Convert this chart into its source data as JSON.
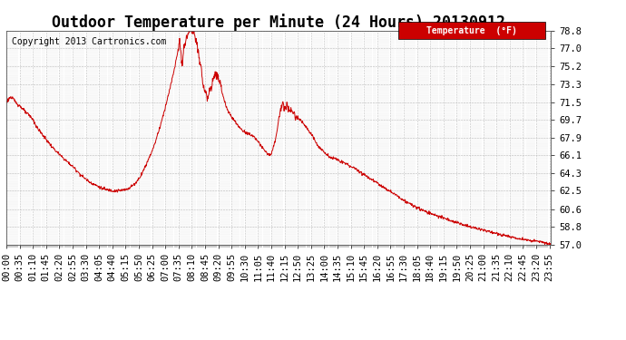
{
  "title": "Outdoor Temperature per Minute (24 Hours) 20130912",
  "copyright_text": "Copyright 2013 Cartronics.com",
  "legend_label": "Temperature  (°F)",
  "legend_bg": "#cc0000",
  "legend_text_color": "#ffffff",
  "line_color": "#cc0000",
  "bg_color": "#ffffff",
  "grid_color": "#aaaaaa",
  "yticks": [
    57.0,
    58.8,
    60.6,
    62.5,
    64.3,
    66.1,
    67.9,
    69.7,
    71.5,
    73.3,
    75.2,
    77.0,
    78.8
  ],
  "ymin": 57.0,
  "ymax": 78.8,
  "title_fontsize": 12,
  "copyright_fontsize": 7,
  "tick_fontsize": 7.5,
  "minutes_total": 1440,
  "curve_keypoints": [
    [
      0,
      71.5
    ],
    [
      10,
      72.0
    ],
    [
      20,
      71.8
    ],
    [
      30,
      71.3
    ],
    [
      40,
      71.0
    ],
    [
      50,
      70.5
    ],
    [
      60,
      70.2
    ],
    [
      70,
      69.8
    ],
    [
      80,
      69.0
    ],
    [
      100,
      68.0
    ],
    [
      120,
      67.0
    ],
    [
      140,
      66.2
    ],
    [
      160,
      65.5
    ],
    [
      180,
      64.8
    ],
    [
      200,
      64.0
    ],
    [
      220,
      63.4
    ],
    [
      240,
      63.0
    ],
    [
      255,
      62.7
    ],
    [
      265,
      62.6
    ],
    [
      275,
      62.55
    ],
    [
      285,
      62.5
    ],
    [
      295,
      62.5
    ],
    [
      305,
      62.55
    ],
    [
      315,
      62.6
    ],
    [
      325,
      62.8
    ],
    [
      340,
      63.2
    ],
    [
      355,
      64.0
    ],
    [
      370,
      65.2
    ],
    [
      390,
      67.0
    ],
    [
      410,
      69.5
    ],
    [
      430,
      72.5
    ],
    [
      445,
      75.0
    ],
    [
      452,
      76.5
    ],
    [
      458,
      77.8
    ],
    [
      462,
      76.2
    ],
    [
      465,
      75.0
    ],
    [
      468,
      76.5
    ],
    [
      472,
      77.5
    ],
    [
      476,
      78.0
    ],
    [
      480,
      78.5
    ],
    [
      484,
      78.7
    ],
    [
      488,
      78.8
    ],
    [
      493,
      78.7
    ],
    [
      498,
      78.3
    ],
    [
      503,
      77.5
    ],
    [
      508,
      76.5
    ],
    [
      513,
      75.2
    ],
    [
      518,
      74.0
    ],
    [
      523,
      73.0
    ],
    [
      528,
      72.5
    ],
    [
      533,
      71.8
    ],
    [
      538,
      72.8
    ],
    [
      543,
      73.3
    ],
    [
      548,
      74.0
    ],
    [
      553,
      74.5
    ],
    [
      558,
      74.2
    ],
    [
      562,
      73.8
    ],
    [
      566,
      73.2
    ],
    [
      570,
      72.5
    ],
    [
      575,
      71.8
    ],
    [
      580,
      71.2
    ],
    [
      585,
      70.7
    ],
    [
      590,
      70.3
    ],
    [
      595,
      70.0
    ],
    [
      600,
      69.8
    ],
    [
      605,
      69.5
    ],
    [
      610,
      69.2
    ],
    [
      615,
      69.0
    ],
    [
      620,
      68.8
    ],
    [
      625,
      68.6
    ],
    [
      630,
      68.5
    ],
    [
      635,
      68.4
    ],
    [
      640,
      68.3
    ],
    [
      645,
      68.2
    ],
    [
      650,
      68.1
    ],
    [
      655,
      68.0
    ],
    [
      660,
      67.8
    ],
    [
      665,
      67.5
    ],
    [
      670,
      67.2
    ],
    [
      675,
      67.0
    ],
    [
      680,
      66.7
    ],
    [
      685,
      66.5
    ],
    [
      690,
      66.3
    ],
    [
      695,
      66.2
    ],
    [
      698,
      66.1
    ],
    [
      700,
      66.2
    ],
    [
      705,
      66.8
    ],
    [
      710,
      67.5
    ],
    [
      715,
      68.5
    ],
    [
      720,
      69.8
    ],
    [
      725,
      70.8
    ],
    [
      730,
      71.5
    ],
    [
      733,
      71.3
    ],
    [
      736,
      70.8
    ],
    [
      739,
      71.0
    ],
    [
      742,
      71.2
    ],
    [
      745,
      71.0
    ],
    [
      748,
      70.5
    ],
    [
      751,
      70.8
    ],
    [
      754,
      70.5
    ],
    [
      757,
      70.6
    ],
    [
      760,
      70.4
    ],
    [
      763,
      70.2
    ],
    [
      768,
      70.0
    ],
    [
      775,
      69.8
    ],
    [
      783,
      69.5
    ],
    [
      792,
      69.0
    ],
    [
      802,
      68.5
    ],
    [
      813,
      67.8
    ],
    [
      825,
      67.0
    ],
    [
      838,
      66.5
    ],
    [
      852,
      66.0
    ],
    [
      867,
      65.8
    ],
    [
      883,
      65.5
    ],
    [
      900,
      65.2
    ],
    [
      920,
      64.8
    ],
    [
      940,
      64.3
    ],
    [
      960,
      63.8
    ],
    [
      980,
      63.3
    ],
    [
      1000,
      62.8
    ],
    [
      1020,
      62.3
    ],
    [
      1040,
      61.8
    ],
    [
      1060,
      61.3
    ],
    [
      1080,
      60.9
    ],
    [
      1100,
      60.5
    ],
    [
      1120,
      60.2
    ],
    [
      1150,
      59.8
    ],
    [
      1180,
      59.4
    ],
    [
      1210,
      59.0
    ],
    [
      1240,
      58.7
    ],
    [
      1270,
      58.4
    ],
    [
      1300,
      58.1
    ],
    [
      1330,
      57.8
    ],
    [
      1360,
      57.6
    ],
    [
      1390,
      57.4
    ],
    [
      1415,
      57.3
    ],
    [
      1430,
      57.1
    ],
    [
      1439,
      57.0
    ]
  ]
}
